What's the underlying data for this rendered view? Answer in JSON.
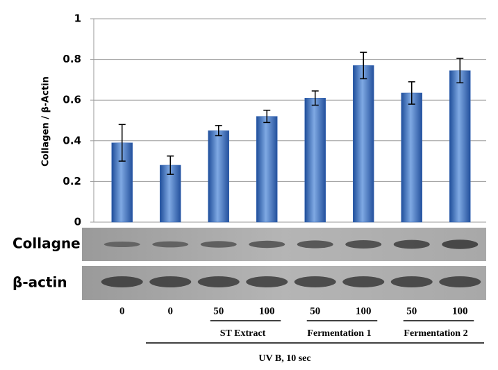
{
  "chart_data": {
    "type": "bar",
    "y_label": "Collagen / β-Actin",
    "categories": [
      "0",
      "0",
      "50",
      "100",
      "50",
      "100",
      "50",
      "100"
    ],
    "values": [
      0.39,
      0.28,
      0.45,
      0.52,
      0.61,
      0.77,
      0.635,
      0.745
    ],
    "errors": [
      0.09,
      0.045,
      0.025,
      0.03,
      0.035,
      0.065,
      0.055,
      0.06
    ],
    "color": "#3566b5",
    "ylim": [
      0,
      1
    ],
    "yticks": [
      0,
      0.2,
      0.4,
      0.6,
      0.8,
      1
    ],
    "grid": true,
    "blot_labels": [
      "Collagne",
      "β-actin"
    ],
    "group_labels": [
      "ST Extract",
      "Fermentation 1",
      "Fermentation 2"
    ],
    "treatment_label": "UV B, 10 sec"
  }
}
